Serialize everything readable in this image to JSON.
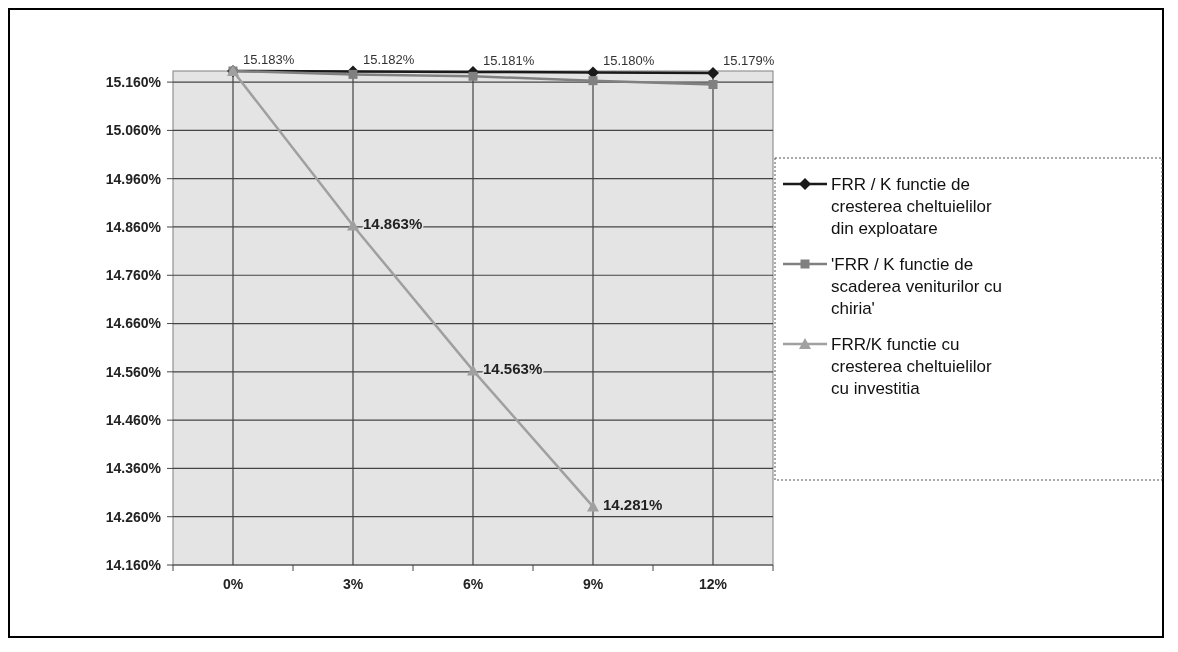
{
  "chart_data": {
    "type": "line",
    "categories": [
      "0%",
      "3%",
      "6%",
      "9%",
      "12%"
    ],
    "series": [
      {
        "name": "FRR / K functie de cresterea cheltuielilor din exploatare",
        "color": "#1a1a1a",
        "marker": "diamond",
        "values": [
          15.183,
          15.182,
          15.181,
          15.18,
          15.179
        ],
        "value_labels": [
          "15.183%",
          "15.182%",
          "15.181%",
          "15.180%",
          "15.179%"
        ]
      },
      {
        "name": "'FRR / K  functie de scaderea veniturilor cu chiria'",
        "color": "#808080",
        "marker": "square",
        "values": [
          15.183,
          15.176,
          15.172,
          15.163,
          15.155
        ]
      },
      {
        "name": "FRR/K  functie cu cresterea cheltuielilor cu investitia",
        "color": "#a0a0a0",
        "marker": "triangle",
        "values": [
          15.183,
          14.863,
          14.563,
          14.281,
          null
        ],
        "value_labels": [
          null,
          "14.863%",
          "14.563%",
          "14.281%",
          null
        ]
      }
    ],
    "ylim": [
      14.16,
      15.183
    ],
    "yticks": [
      {
        "value": 14.16,
        "label": "14.160%"
      },
      {
        "value": 14.26,
        "label": "14.260%"
      },
      {
        "value": 14.36,
        "label": "14.360%"
      },
      {
        "value": 14.46,
        "label": "14.460%"
      },
      {
        "value": 14.56,
        "label": "14.560%"
      },
      {
        "value": 14.66,
        "label": "14.660%"
      },
      {
        "value": 14.76,
        "label": "14.760%"
      },
      {
        "value": 14.86,
        "label": "14.860%"
      },
      {
        "value": 14.96,
        "label": "14.960%"
      },
      {
        "value": 15.06,
        "label": "15.060%"
      },
      {
        "value": 15.16,
        "label": "15.160%"
      }
    ],
    "grid": true,
    "legend": "right"
  }
}
